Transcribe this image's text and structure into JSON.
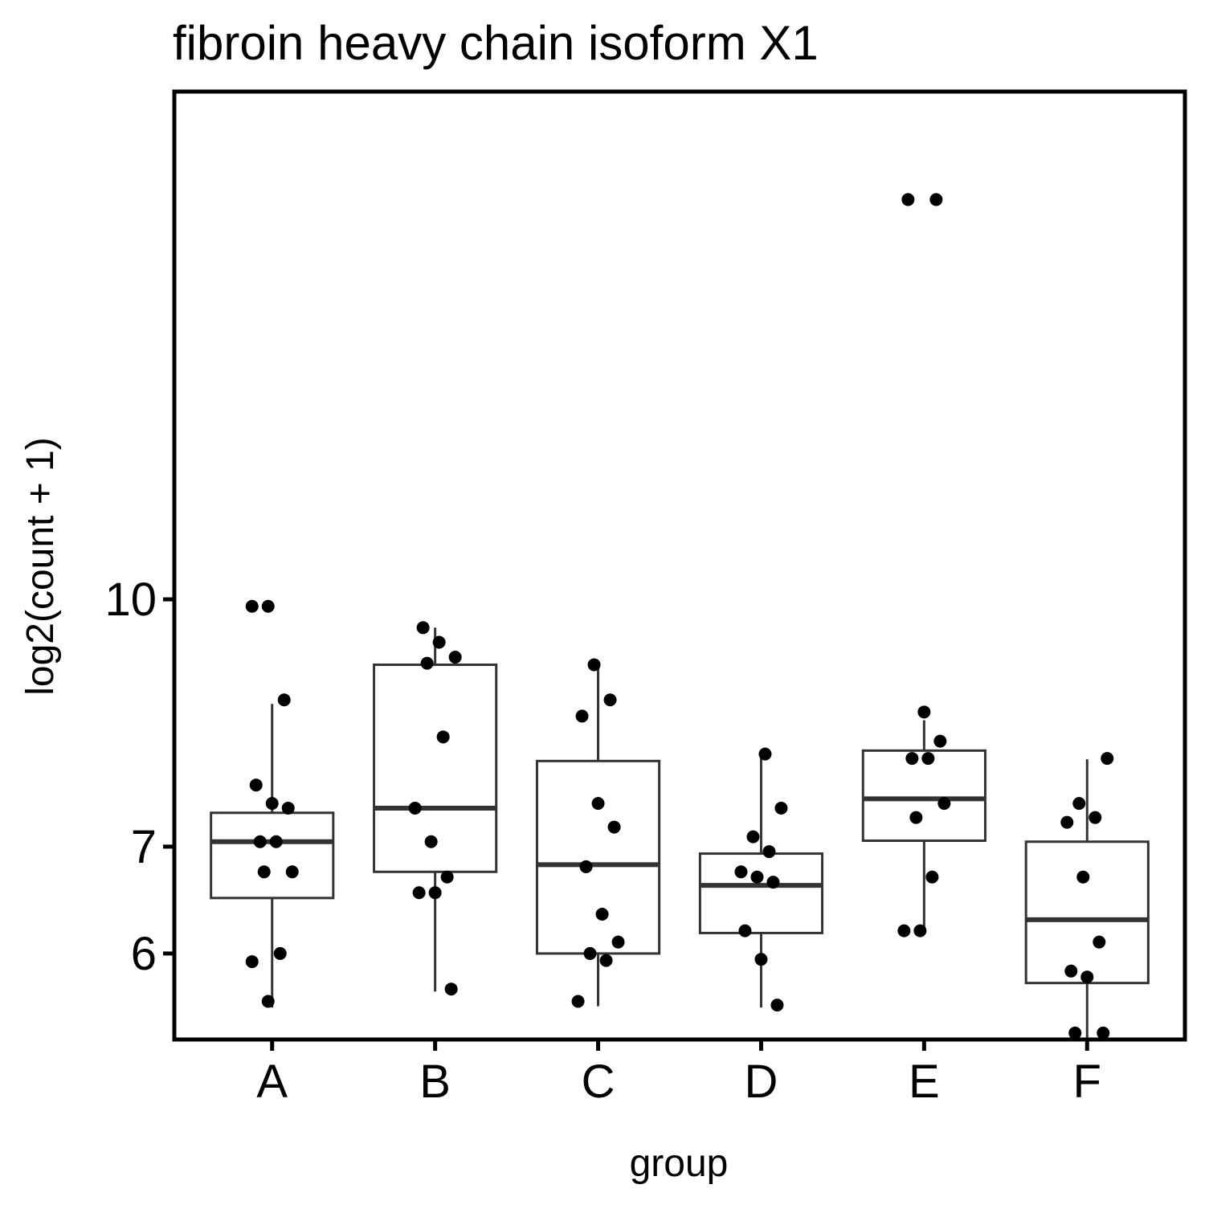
{
  "chart_data": {
    "type": "box",
    "title": "fibroin heavy chain isoform X1",
    "xlabel": "group",
    "ylabel": "log2(count + 1)",
    "y_scale": "log",
    "y_ticks": [
      6,
      7,
      10
    ],
    "ylim": [
      5.3,
      20.8
    ],
    "grid": false,
    "legend": "none",
    "categories": [
      "A",
      "B",
      "C",
      "D",
      "E",
      "F"
    ],
    "boxes": [
      {
        "group": "A",
        "q1": 6.5,
        "median": 7.05,
        "q3": 7.35,
        "whisker_low": 5.55,
        "whisker_high": 8.6
      },
      {
        "group": "B",
        "q1": 6.75,
        "median": 7.4,
        "q3": 9.1,
        "whisker_low": 5.68,
        "whisker_high": 9.6
      },
      {
        "group": "C",
        "q1": 6.0,
        "median": 6.82,
        "q3": 7.92,
        "whisker_low": 5.56,
        "whisker_high": 9.09
      },
      {
        "group": "D",
        "q1": 6.18,
        "median": 6.62,
        "q3": 6.93,
        "whisker_low": 5.55,
        "whisker_high": 8.02
      },
      {
        "group": "E",
        "q1": 7.06,
        "median": 7.5,
        "q3": 8.04,
        "whisker_low": 6.2,
        "whisker_high": 8.4
      },
      {
        "group": "F",
        "q1": 5.75,
        "median": 6.3,
        "q3": 7.05,
        "whisker_low": 5.3,
        "whisker_high": 7.94
      }
    ],
    "points": [
      {
        "group": "A",
        "values": [
          9.9,
          9.9,
          8.65,
          7.65,
          7.45,
          7.4,
          7.05,
          7.05,
          6.75,
          6.75,
          6.0,
          5.93,
          5.6
        ]
      },
      {
        "group": "B",
        "values": [
          9.6,
          9.4,
          9.2,
          9.12,
          8.2,
          7.4,
          7.05,
          6.7,
          6.55,
          6.55,
          5.7
        ]
      },
      {
        "group": "C",
        "values": [
          9.1,
          8.65,
          8.45,
          7.45,
          7.2,
          6.8,
          6.35,
          6.1,
          6.0,
          5.94,
          5.6
        ]
      },
      {
        "group": "D",
        "values": [
          8.0,
          7.4,
          7.1,
          6.95,
          6.75,
          6.7,
          6.65,
          6.2,
          5.95,
          5.57
        ]
      },
      {
        "group": "E",
        "values": [
          17.8,
          17.8,
          8.5,
          8.15,
          7.95,
          7.95,
          7.45,
          7.3,
          6.7,
          6.2,
          6.2
        ]
      },
      {
        "group": "F",
        "values": [
          7.95,
          7.45,
          7.3,
          7.25,
          6.7,
          6.1,
          5.85,
          5.8,
          5.35,
          5.35
        ]
      }
    ]
  }
}
